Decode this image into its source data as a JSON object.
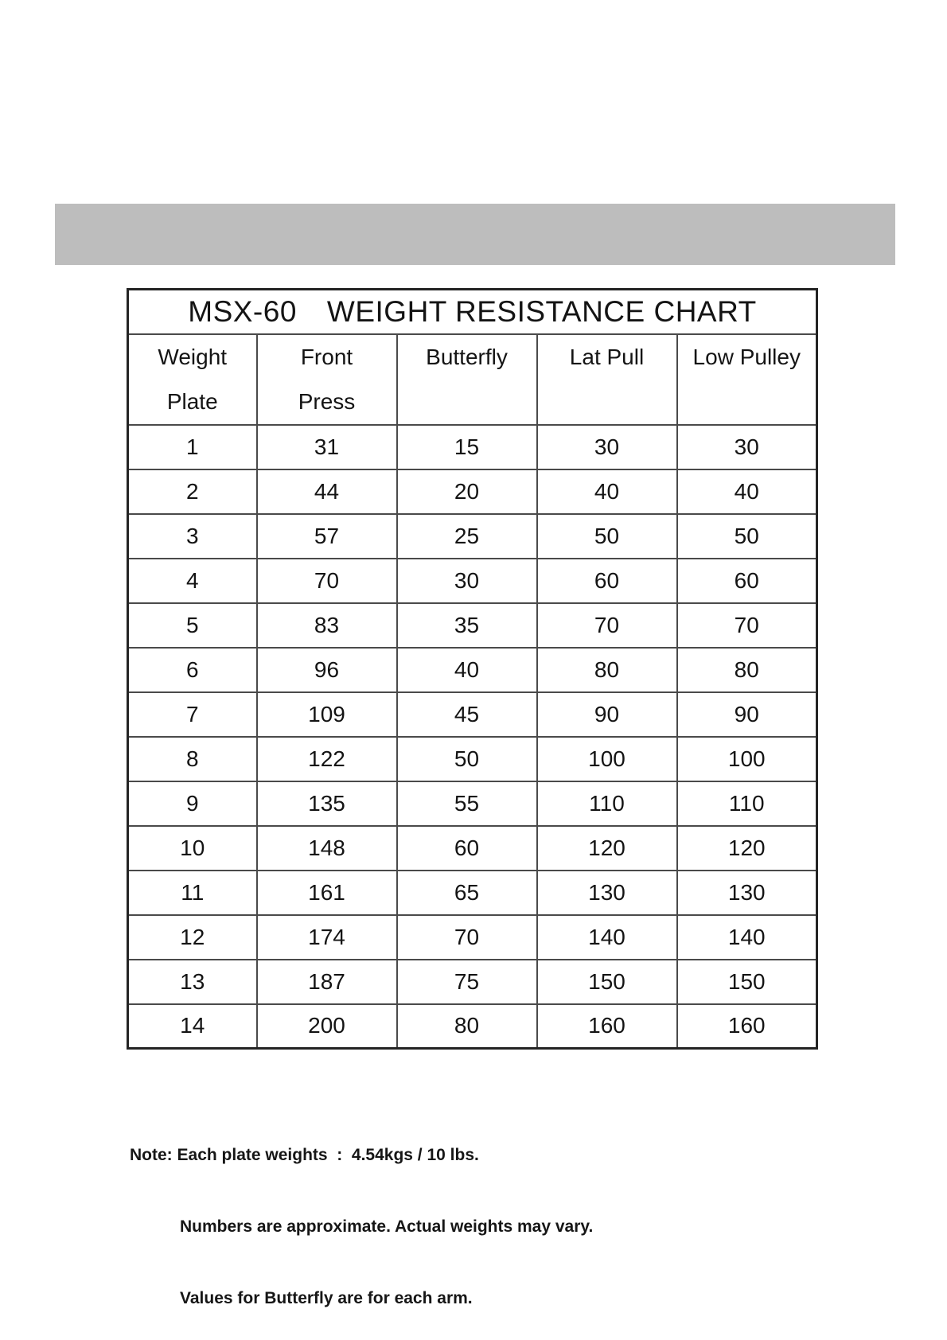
{
  "banner": {
    "color": "#bdbdbd"
  },
  "table": {
    "title": {
      "model": "MSX-60",
      "heading": "WEIGHT RESISTANCE CHART"
    },
    "columns": [
      {
        "line1": "Weight",
        "line2": "Plate"
      },
      {
        "line1": "Front",
        "line2": "Press"
      },
      {
        "line1": "Butterfly",
        "line2": ""
      },
      {
        "line1": "Lat Pull",
        "line2": ""
      },
      {
        "line1": "Low Pulley",
        "line2": ""
      }
    ],
    "rows": [
      [
        1,
        31,
        15,
        30,
        30
      ],
      [
        2,
        44,
        20,
        40,
        40
      ],
      [
        3,
        57,
        25,
        50,
        50
      ],
      [
        4,
        70,
        30,
        60,
        60
      ],
      [
        5,
        83,
        35,
        70,
        70
      ],
      [
        6,
        96,
        40,
        80,
        80
      ],
      [
        7,
        109,
        45,
        90,
        90
      ],
      [
        8,
        122,
        50,
        100,
        100
      ],
      [
        9,
        135,
        55,
        110,
        110
      ],
      [
        10,
        148,
        60,
        120,
        120
      ],
      [
        11,
        161,
        65,
        130,
        130
      ],
      [
        12,
        174,
        70,
        140,
        140
      ],
      [
        13,
        187,
        75,
        150,
        150
      ],
      [
        14,
        200,
        80,
        160,
        160
      ]
    ]
  },
  "note": {
    "label": "Note:",
    "lines": [
      "Each plate weights  :  4.54kgs / 10 lbs.",
      "Numbers are approximate. Actual weights may vary.",
      "Values for Butterfly are for each arm."
    ]
  }
}
